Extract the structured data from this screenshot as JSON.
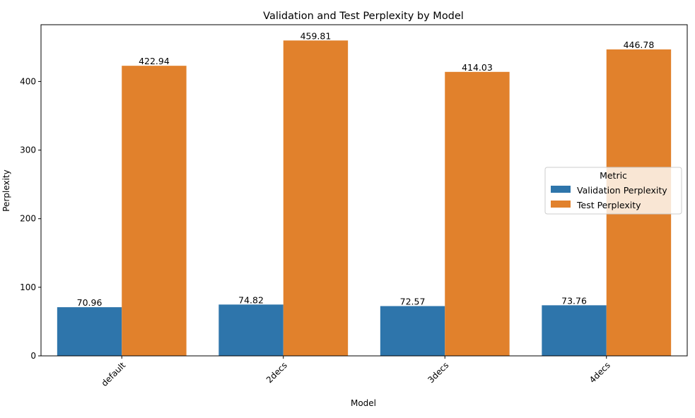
{
  "chart_data": {
    "type": "bar",
    "title": "Validation and Test Perplexity by Model",
    "xlabel": "Model",
    "ylabel": "Perplexity",
    "categories": [
      "default",
      "2decs",
      "3decs",
      "4decs"
    ],
    "series": [
      {
        "name": "Validation Perplexity",
        "values": [
          70.96,
          74.82,
          72.57,
          73.76
        ],
        "color": "#2e75ab"
      },
      {
        "name": "Test Perplexity",
        "values": [
          422.94,
          459.81,
          414.03,
          446.78
        ],
        "color": "#e1812c"
      }
    ],
    "ylim": [
      0,
      482.8
    ],
    "yticks": [
      0,
      100,
      200,
      300,
      400
    ],
    "data_labels": [
      [
        "70.96",
        "74.82",
        "72.57",
        "73.76"
      ],
      [
        "422.94",
        "459.81",
        "414.03",
        "446.78"
      ]
    ],
    "legend": {
      "title": "Metric",
      "placement": "center-right"
    },
    "grid": false,
    "xtick_rotation": 45
  }
}
